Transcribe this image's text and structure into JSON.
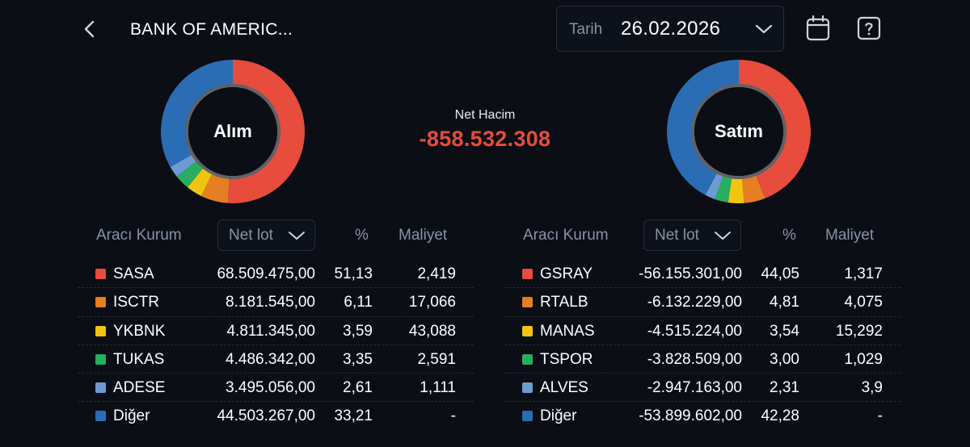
{
  "header": {
    "title": "BANK OF AMERIC...",
    "date_label": "Tarih",
    "date_value": "26.02.2026"
  },
  "colors": {
    "background": "#0b0e15",
    "red": "#e74c3c",
    "orange": "#e67e22",
    "yellow": "#f1c40f",
    "green": "#27ae60",
    "lightblue": "#6d9bd1",
    "blue": "#2a6db5",
    "negative": "#e74c3c"
  },
  "buy": {
    "donut_label": "Alım",
    "header": {
      "broker": "Aracı Kurum",
      "select": "Net lot",
      "pct": "%",
      "cost": "Maliyet"
    },
    "rows": [
      {
        "name": "SASA",
        "lot": "68.509.475,00",
        "pct": "51,13",
        "cost": "2,419",
        "color": "#e74c3c",
        "share": 51.13
      },
      {
        "name": "ISCTR",
        "lot": "8.181.545,00",
        "pct": "6,11",
        "cost": "17,066",
        "color": "#e67e22",
        "share": 6.11
      },
      {
        "name": "YKBNK",
        "lot": "4.811.345,00",
        "pct": "3,59",
        "cost": "43,088",
        "color": "#f1c40f",
        "share": 3.59
      },
      {
        "name": "TUKAS",
        "lot": "4.486.342,00",
        "pct": "3,35",
        "cost": "2,591",
        "color": "#27ae60",
        "share": 3.35
      },
      {
        "name": "ADESE",
        "lot": "3.495.056,00",
        "pct": "2,61",
        "cost": "1,111",
        "color": "#6d9bd1",
        "share": 2.61
      },
      {
        "name": "Diğer",
        "lot": "44.503.267,00",
        "pct": "33,21",
        "cost": "-",
        "color": "#2a6db5",
        "share": 33.21
      }
    ]
  },
  "net": {
    "label": "Net Hacim",
    "value": "-858.532.308"
  },
  "sell": {
    "donut_label": "Satım",
    "header": {
      "broker": "Aracı Kurum",
      "select": "Net lot",
      "pct": "%",
      "cost": "Maliyet"
    },
    "rows": [
      {
        "name": "GSRAY",
        "lot": "-56.155.301,00",
        "pct": "44,05",
        "cost": "1,317",
        "color": "#e74c3c",
        "share": 44.05
      },
      {
        "name": "RTALB",
        "lot": "-6.132.229,00",
        "pct": "4,81",
        "cost": "4,075",
        "color": "#e67e22",
        "share": 4.81
      },
      {
        "name": "MANAS",
        "lot": "-4.515.224,00",
        "pct": "3,54",
        "cost": "15,292",
        "color": "#f1c40f",
        "share": 3.54
      },
      {
        "name": "TSPOR",
        "lot": "-3.828.509,00",
        "pct": "3,00",
        "cost": "1,029",
        "color": "#27ae60",
        "share": 3.0
      },
      {
        "name": "ALVES",
        "lot": "-2.947.163,00",
        "pct": "2,31",
        "cost": "3,9",
        "color": "#6d9bd1",
        "share": 2.31
      },
      {
        "name": "Diğer",
        "lot": "-53.899.602,00",
        "pct": "42,28",
        "cost": "-",
        "color": "#2a6db5",
        "share": 42.28
      }
    ]
  }
}
